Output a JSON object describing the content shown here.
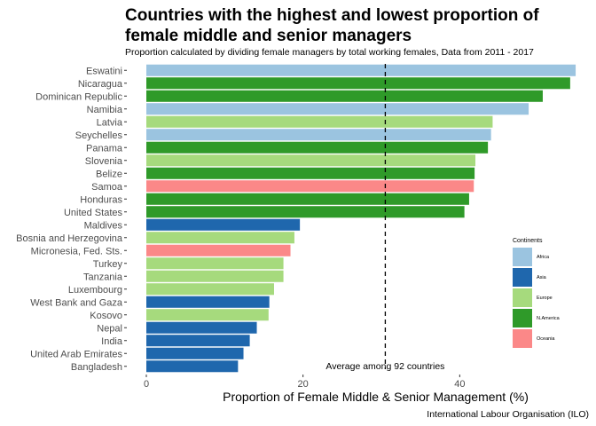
{
  "chart_data": {
    "type": "bar",
    "orientation": "horizontal",
    "title": "Countries with the highest and lowest proportion of female middle and senior managers",
    "subtitle": "Proportion calculated by dividing female managers by total working females, Data from 2011 - 2017",
    "xlabel": "Proportion of Female Middle & Senior Management (%)",
    "ylabel": "",
    "caption": "International Labour Organisation (ILO)",
    "xlim": [
      0,
      54
    ],
    "x_ticks": [
      0,
      20,
      40
    ],
    "grid": false,
    "reference_line": {
      "value": 30.5,
      "style": "dashed",
      "label": "Average among 92 countries"
    },
    "legend": {
      "title": "Continents",
      "position": "right",
      "entries": [
        {
          "name": "Africa",
          "color": "#9BC4E0"
        },
        {
          "name": "Asia",
          "color": "#1F67AD"
        },
        {
          "name": "Europe",
          "color": "#A6DA7D"
        },
        {
          "name": "N.America",
          "color": "#2F9A29"
        },
        {
          "name": "Oceania",
          "color": "#FB8888"
        }
      ]
    },
    "categories": [
      "Eswatini",
      "Nicaragua",
      "Dominican Republic",
      "Namibia",
      "Latvia",
      "Seychelles",
      "Panama",
      "Slovenia",
      "Belize",
      "Samoa",
      "Honduras",
      "United States",
      "Maldives",
      "Bosnia and Herzegovina",
      "Micronesia, Fed. Sts.",
      "Turkey",
      "Tanzania",
      "Luxembourg",
      "West Bank and Gaza",
      "Kosovo",
      "Nepal",
      "India",
      "United Arab Emirates",
      "Bangladesh"
    ],
    "values": [
      54.8,
      54.1,
      50.6,
      48.8,
      44.2,
      44.0,
      43.6,
      42.0,
      41.9,
      41.8,
      41.2,
      40.6,
      19.6,
      18.9,
      18.4,
      17.5,
      17.5,
      16.3,
      15.7,
      15.6,
      14.1,
      13.2,
      12.4,
      11.7
    ],
    "continents": [
      "Africa",
      "N.America",
      "N.America",
      "Africa",
      "Europe",
      "Africa",
      "N.America",
      "Europe",
      "N.America",
      "Oceania",
      "N.America",
      "N.America",
      "Asia",
      "Europe",
      "Oceania",
      "Europe",
      "Europe",
      "Europe",
      "Asia",
      "Europe",
      "Asia",
      "Asia",
      "Asia",
      "Asia"
    ]
  }
}
